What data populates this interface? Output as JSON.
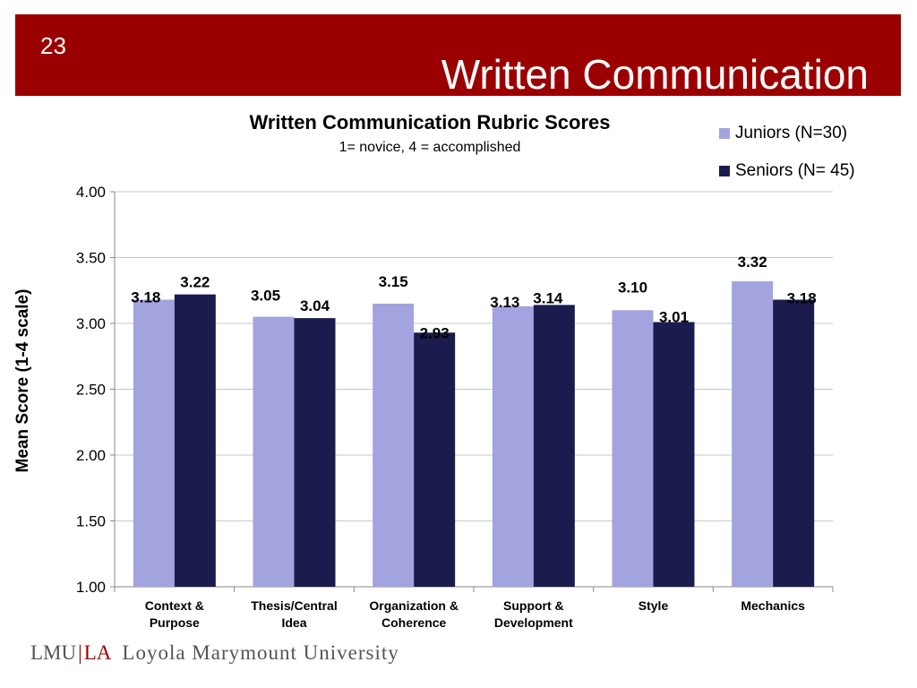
{
  "slide": {
    "number": "23",
    "title": "Written Communication"
  },
  "footer": {
    "lmu": "LMU",
    "la": "LA",
    "university": "Loyola Marymount University"
  },
  "colors": {
    "banner": "#9b0000",
    "juniors": "#a3a3e0",
    "seniors": "#1b1b4d"
  },
  "chart_data": {
    "type": "bar",
    "title": "Written Communication Rubric Scores",
    "subtitle": "1= novice, 4 = accomplished",
    "ylabel": "Mean Score (1-4 scale)",
    "xlabel": "",
    "ylim": [
      1.0,
      4.0
    ],
    "yticks": [
      "1.00",
      "1.50",
      "2.00",
      "2.50",
      "3.00",
      "3.50",
      "4.00"
    ],
    "grid": true,
    "legend_position": "top-right",
    "categories": [
      [
        "Context &",
        "Purpose"
      ],
      [
        "Thesis/Central",
        "Idea"
      ],
      [
        "Organization &",
        "Coherence"
      ],
      [
        "Support &",
        "Development"
      ],
      [
        "Style"
      ],
      [
        "Mechanics"
      ]
    ],
    "series": [
      {
        "name": "Juniors (N=30)",
        "color": "#a3a3e0",
        "values": [
          3.18,
          3.05,
          3.15,
          3.13,
          3.1,
          3.32
        ],
        "labels": [
          "3.18",
          "3.05",
          "3.15",
          "3.13",
          "3.10",
          "3.32"
        ]
      },
      {
        "name": "Seniors (N= 45)",
        "color": "#1b1b4d",
        "values": [
          3.22,
          3.04,
          2.93,
          3.14,
          3.01,
          3.18
        ],
        "labels": [
          "3.22",
          "3.04",
          "2.93",
          "3.14",
          "3.01",
          "3.18"
        ]
      }
    ]
  }
}
